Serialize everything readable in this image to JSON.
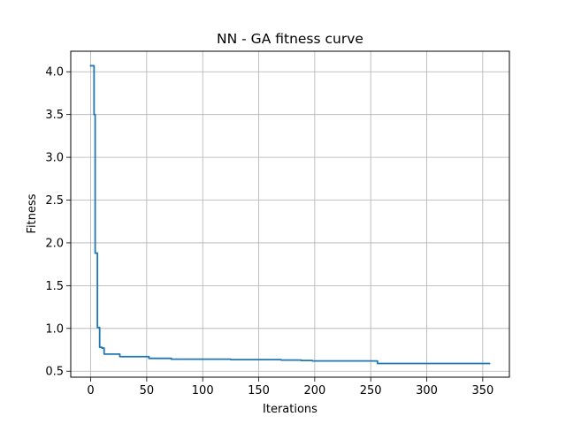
{
  "chart_data": {
    "type": "line",
    "title": "NN - GA fitness curve",
    "xlabel": "Iterations",
    "ylabel": "Fitness",
    "xlim": [
      -17.8,
      373.8
    ],
    "ylim": [
      0.43,
      4.24
    ],
    "xticks": [
      0,
      50,
      100,
      150,
      200,
      250,
      300,
      350
    ],
    "yticks": [
      0.5,
      1.0,
      1.5,
      2.0,
      2.5,
      3.0,
      3.5,
      4.0
    ],
    "xtick_labels": [
      "0",
      "50",
      "100",
      "150",
      "200",
      "250",
      "300",
      "350"
    ],
    "ytick_labels": [
      "0.5",
      "1.0",
      "1.5",
      "2.0",
      "2.5",
      "3.0",
      "3.5",
      "4.0"
    ],
    "grid": true,
    "legend": null,
    "series": [
      {
        "color": "#1f77b4",
        "step": true,
        "x": [
          0,
          2,
          3,
          4,
          6,
          8,
          10,
          12,
          26,
          52,
          72,
          125,
          170,
          188,
          198,
          256,
          356
        ],
        "y": [
          4.07,
          4.07,
          3.5,
          1.88,
          1.01,
          0.78,
          0.77,
          0.7,
          0.67,
          0.65,
          0.64,
          0.635,
          0.63,
          0.625,
          0.62,
          0.59,
          0.59
        ]
      }
    ]
  }
}
